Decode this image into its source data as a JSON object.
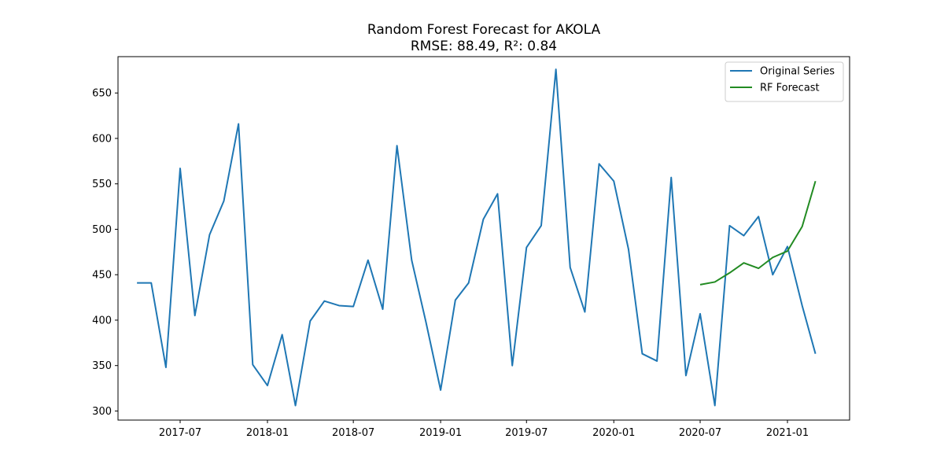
{
  "chart_data": {
    "type": "line",
    "title": "Random Forest Forecast for AKOLA",
    "subtitle": "RMSE: 88.49, R²: 0.84",
    "xlabel": "",
    "ylabel": "",
    "ylim": [
      290,
      690
    ],
    "xlim": [
      "2017-02-20",
      "2021-05-12"
    ],
    "x_ticks": [
      "2017-07-01",
      "2018-01-01",
      "2018-07-01",
      "2019-01-01",
      "2019-07-01",
      "2020-01-01",
      "2020-07-01",
      "2021-01-01"
    ],
    "x_tick_labels": [
      "2017-07",
      "2018-01",
      "2018-07",
      "2019-01",
      "2019-07",
      "2020-01",
      "2020-07",
      "2021-01"
    ],
    "y_ticks": [
      300,
      350,
      400,
      450,
      500,
      550,
      600,
      650
    ],
    "legend_position": "top-right",
    "grid": false,
    "series": [
      {
        "name": "Original Series",
        "color": "#1f77b4",
        "points": [
          [
            "2017-04-01",
            441
          ],
          [
            "2017-05-01",
            441
          ],
          [
            "2017-06-01",
            348
          ],
          [
            "2017-07-01",
            567
          ],
          [
            "2017-08-01",
            405
          ],
          [
            "2017-09-01",
            494
          ],
          [
            "2017-10-01",
            531
          ],
          [
            "2017-11-01",
            616
          ],
          [
            "2017-12-01",
            351
          ],
          [
            "2018-01-01",
            328
          ],
          [
            "2018-02-01",
            384
          ],
          [
            "2018-03-01",
            306
          ],
          [
            "2018-04-01",
            399
          ],
          [
            "2018-05-01",
            421
          ],
          [
            "2018-06-01",
            416
          ],
          [
            "2018-07-01",
            415
          ],
          [
            "2018-08-01",
            466
          ],
          [
            "2018-09-01",
            412
          ],
          [
            "2018-10-01",
            592
          ],
          [
            "2018-11-01",
            466
          ],
          [
            "2018-12-01",
            398
          ],
          [
            "2019-01-01",
            323
          ],
          [
            "2019-02-01",
            422
          ],
          [
            "2019-03-01",
            441
          ],
          [
            "2019-04-01",
            511
          ],
          [
            "2019-05-01",
            539
          ],
          [
            "2019-06-01",
            350
          ],
          [
            "2019-07-01",
            480
          ],
          [
            "2019-08-01",
            504
          ],
          [
            "2019-09-01",
            676
          ],
          [
            "2019-10-01",
            458
          ],
          [
            "2019-11-01",
            409
          ],
          [
            "2019-12-01",
            572
          ],
          [
            "2020-01-01",
            553
          ],
          [
            "2020-02-01",
            478
          ],
          [
            "2020-03-01",
            363
          ],
          [
            "2020-04-01",
            355
          ],
          [
            "2020-05-01",
            557
          ],
          [
            "2020-06-01",
            339
          ],
          [
            "2020-07-01",
            407
          ],
          [
            "2020-08-01",
            306
          ],
          [
            "2020-09-01",
            504
          ],
          [
            "2020-10-01",
            493
          ],
          [
            "2020-11-01",
            514
          ],
          [
            "2020-12-01",
            450
          ],
          [
            "2021-01-01",
            481
          ],
          [
            "2021-02-01",
            416
          ],
          [
            "2021-03-01",
            363
          ]
        ]
      },
      {
        "name": "RF Forecast",
        "color": "#228b22",
        "points": [
          [
            "2020-07-01",
            439
          ],
          [
            "2020-08-01",
            442
          ],
          [
            "2020-09-01",
            452
          ],
          [
            "2020-10-01",
            463
          ],
          [
            "2020-11-01",
            457
          ],
          [
            "2020-12-01",
            469
          ],
          [
            "2021-01-01",
            476
          ],
          [
            "2021-02-01",
            503
          ],
          [
            "2021-03-01",
            553
          ]
        ]
      }
    ]
  }
}
